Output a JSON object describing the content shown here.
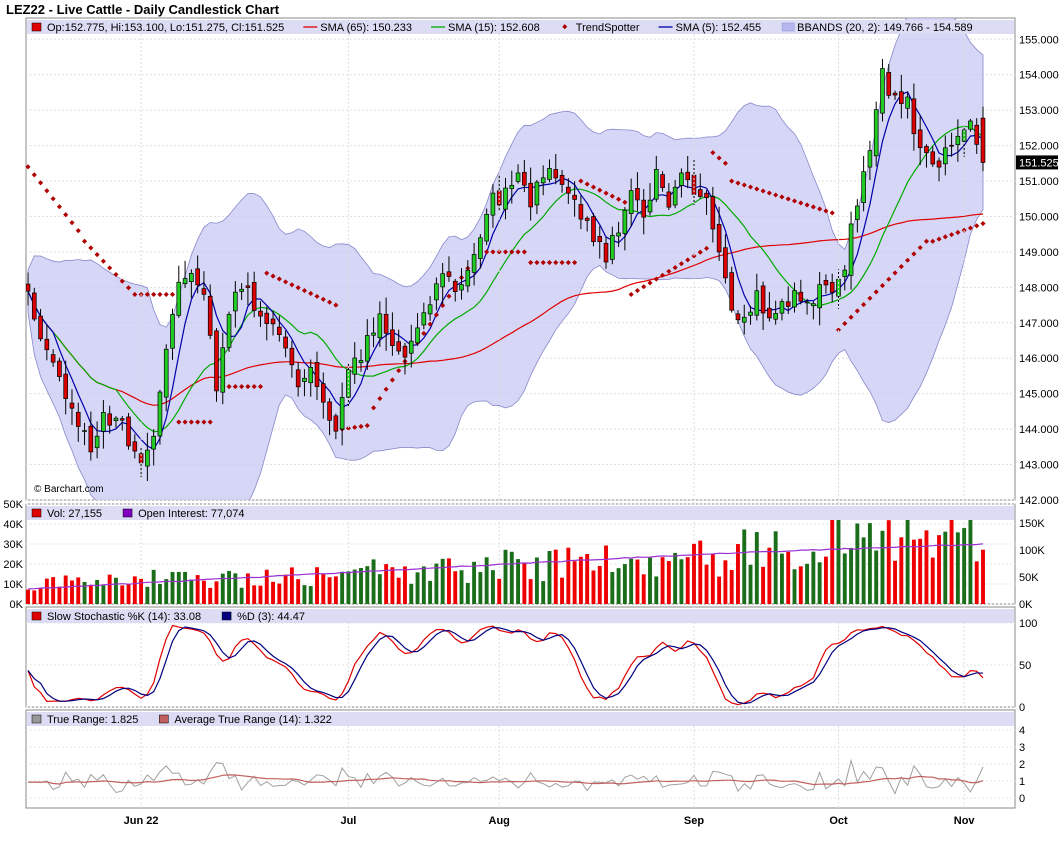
{
  "chart_data": {
    "type": "candlestick",
    "title": "LEZ22 - Live Cattle - Daily Candlestick Chart",
    "watermark": "© Barchart.com",
    "last_price_label": "151.525",
    "x_labels": [
      "Jun 22",
      "Jul",
      "Aug",
      "Sep",
      "Oct",
      "Nov"
    ],
    "price_panel": {
      "ylim": [
        142.0,
        155.6
      ],
      "y_ticks": [
        "142.000",
        "143.000",
        "144.000",
        "145.000",
        "146.000",
        "147.000",
        "148.000",
        "149.000",
        "150.000",
        "151.000",
        "152.000",
        "153.000",
        "154.000",
        "155.000"
      ],
      "legend": [
        {
          "text": "Op:152.775, Hi:153.100, Lo:151.275, Cl:151.525",
          "color": "#e00000",
          "kind": "box"
        },
        {
          "text": "SMA (65): 150.233",
          "color": "#e00000",
          "kind": "line"
        },
        {
          "text": "SMA (15): 152.608",
          "color": "#00aa00",
          "kind": "line"
        },
        {
          "text": "TrendSpotter",
          "color": "#aa0000",
          "kind": "dot"
        },
        {
          "text": "SMA (5): 152.455",
          "color": "#0000aa",
          "kind": "line"
        },
        {
          "text": "BBANDS (20, 2): 149.766 - 154.589",
          "color": "#b8b8f0",
          "kind": "band"
        }
      ],
      "anchors": [
        [
          0,
          147.7
        ],
        [
          3,
          146.0
        ],
        [
          6,
          145.0
        ],
        [
          8,
          144.0
        ],
        [
          10,
          143.6
        ],
        [
          12,
          144.2
        ],
        [
          15,
          144.0
        ],
        [
          18,
          143.3
        ],
        [
          20,
          143.8
        ],
        [
          23,
          147.5
        ],
        [
          25,
          148.3
        ],
        [
          28,
          147.9
        ],
        [
          30,
          145.0
        ],
        [
          32,
          147.5
        ],
        [
          34,
          148.0
        ],
        [
          36,
          147.6
        ],
        [
          38,
          147.2
        ],
        [
          40,
          146.5
        ],
        [
          43,
          145.3
        ],
        [
          45,
          145.6
        ],
        [
          47,
          144.6
        ],
        [
          49,
          144.2
        ],
        [
          51,
          145.4
        ],
        [
          53,
          146.2
        ],
        [
          56,
          147.0
        ],
        [
          58,
          146.2
        ],
        [
          60,
          145.9
        ],
        [
          62,
          146.7
        ],
        [
          64,
          147.7
        ],
        [
          66,
          148.5
        ],
        [
          68,
          148.0
        ],
        [
          70,
          148.4
        ],
        [
          72,
          149.6
        ],
        [
          74,
          150.4
        ],
        [
          76,
          150.6
        ],
        [
          78,
          151.0
        ],
        [
          80,
          150.3
        ],
        [
          82,
          151.3
        ],
        [
          84,
          150.9
        ],
        [
          86,
          150.5
        ],
        [
          88,
          150.0
        ],
        [
          90,
          149.3
        ],
        [
          92,
          148.9
        ],
        [
          94,
          149.8
        ],
        [
          96,
          150.9
        ],
        [
          98,
          150.1
        ],
        [
          100,
          151.1
        ],
        [
          102,
          150.5
        ],
        [
          104,
          151.0
        ],
        [
          106,
          150.8
        ],
        [
          108,
          150.6
        ],
        [
          110,
          148.9
        ],
        [
          112,
          147.2
        ],
        [
          114,
          146.9
        ],
        [
          116,
          147.8
        ],
        [
          118,
          147.3
        ],
        [
          120,
          147.6
        ],
        [
          122,
          147.7
        ],
        [
          124,
          147.4
        ],
        [
          126,
          148.1
        ],
        [
          128,
          148.0
        ],
        [
          130,
          148.7
        ],
        [
          132,
          150.5
        ],
        [
          134,
          152.0
        ],
        [
          136,
          153.9
        ],
        [
          138,
          153.3
        ],
        [
          140,
          153.2
        ],
        [
          142,
          152.0
        ],
        [
          144,
          151.3
        ],
        [
          146,
          151.9
        ],
        [
          148,
          152.5
        ],
        [
          150,
          152.6
        ],
        [
          152,
          151.6
        ]
      ],
      "trendspotter_segments": [
        {
          "from": 0,
          "to": 8,
          "start": 151.4,
          "end": 149.6
        },
        {
          "from": 9,
          "to": 17,
          "start": 149.3,
          "end": 147.8
        },
        {
          "from": 18,
          "to": 23,
          "start": 147.8,
          "end": 147.8
        },
        {
          "from": 24,
          "to": 29,
          "start": 144.2,
          "end": 144.2
        },
        {
          "from": 30,
          "to": 37,
          "start": 145.2,
          "end": 145.2
        },
        {
          "from": 38,
          "to": 49,
          "start": 148.4,
          "end": 147.5
        },
        {
          "from": 50,
          "to": 54,
          "start": 144.0,
          "end": 144.1
        },
        {
          "from": 55,
          "to": 71,
          "start": 144.6,
          "end": 148.8
        },
        {
          "from": 72,
          "to": 79,
          "start": 149.0,
          "end": 149.0
        },
        {
          "from": 80,
          "to": 87,
          "start": 148.7,
          "end": 148.7
        },
        {
          "from": 88,
          "to": 95,
          "start": 151.0,
          "end": 150.4
        },
        {
          "from": 96,
          "to": 108,
          "start": 147.8,
          "end": 149.1
        },
        {
          "from": 109,
          "to": 111,
          "start": 151.8,
          "end": 151.5
        },
        {
          "from": 112,
          "to": 128,
          "start": 151.0,
          "end": 150.1
        },
        {
          "from": 129,
          "to": 143,
          "start": 146.8,
          "end": 149.3
        },
        {
          "from": 144,
          "to": 152,
          "start": 149.3,
          "end": 149.8
        }
      ]
    },
    "volume_panel": {
      "left_ticks": [
        "0K",
        "10K",
        "20K",
        "30K",
        "40K",
        "50K"
      ],
      "right_ticks": [
        "0K",
        "50K",
        "100K",
        "150K"
      ],
      "legend": [
        {
          "text": "Vol: 27,155",
          "color": "#e00000",
          "kind": "box"
        },
        {
          "text": "Open Interest: 77,074",
          "color": "#8000c0",
          "kind": "box"
        }
      ]
    },
    "stoch_panel": {
      "ticks": [
        "0",
        "50",
        "100"
      ],
      "legend": [
        {
          "text": "Slow Stochastic %K (14): 33.08",
          "color": "#e00000",
          "kind": "box"
        },
        {
          "text": "%D (3): 44.47",
          "color": "#000080",
          "kind": "box"
        }
      ]
    },
    "atr_panel": {
      "ticks": [
        "0",
        "1",
        "2",
        "3",
        "4"
      ],
      "legend": [
        {
          "text": "True Range: 1.825",
          "color": "#999999",
          "kind": "box"
        },
        {
          "text": "Average True Range (14): 1.322",
          "color": "#c06060",
          "kind": "box"
        }
      ]
    }
  }
}
